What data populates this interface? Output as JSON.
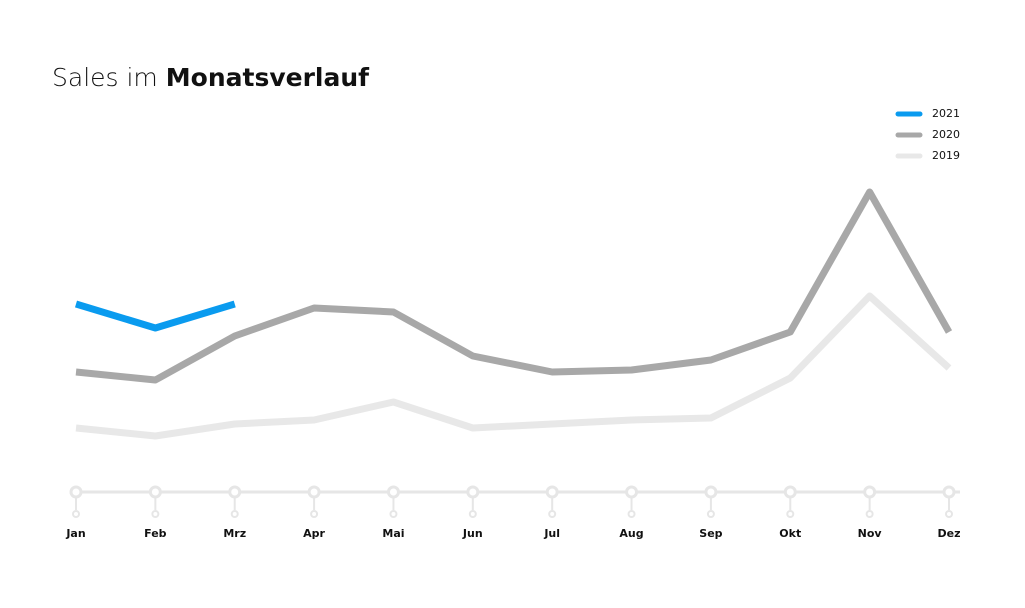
{
  "chart_data": {
    "type": "line",
    "title": "Sales im",
    "title_emphasis": "Monatsverlauf",
    "categories": [
      "Jan",
      "Feb",
      "Mrz",
      "Apr",
      "Mai",
      "Jun",
      "Jul",
      "Aug",
      "Sep",
      "Okt",
      "Nov",
      "Dez"
    ],
    "series": [
      {
        "name": "2021",
        "color": "#0a9bef",
        "values": [
          47,
          41,
          47,
          null,
          null,
          null,
          null,
          null,
          null,
          null,
          null,
          null
        ]
      },
      {
        "name": "2020",
        "color": "#a8a8a8",
        "values": [
          30,
          28,
          39,
          46,
          45,
          34,
          30,
          30.5,
          33,
          40,
          75,
          40
        ]
      },
      {
        "name": "2019",
        "color": "#e8e8e8",
        "values": [
          16,
          14,
          17,
          18,
          22.5,
          16,
          17,
          18,
          18.5,
          28.5,
          49,
          31
        ]
      }
    ],
    "ylim": [
      0,
      100
    ]
  }
}
